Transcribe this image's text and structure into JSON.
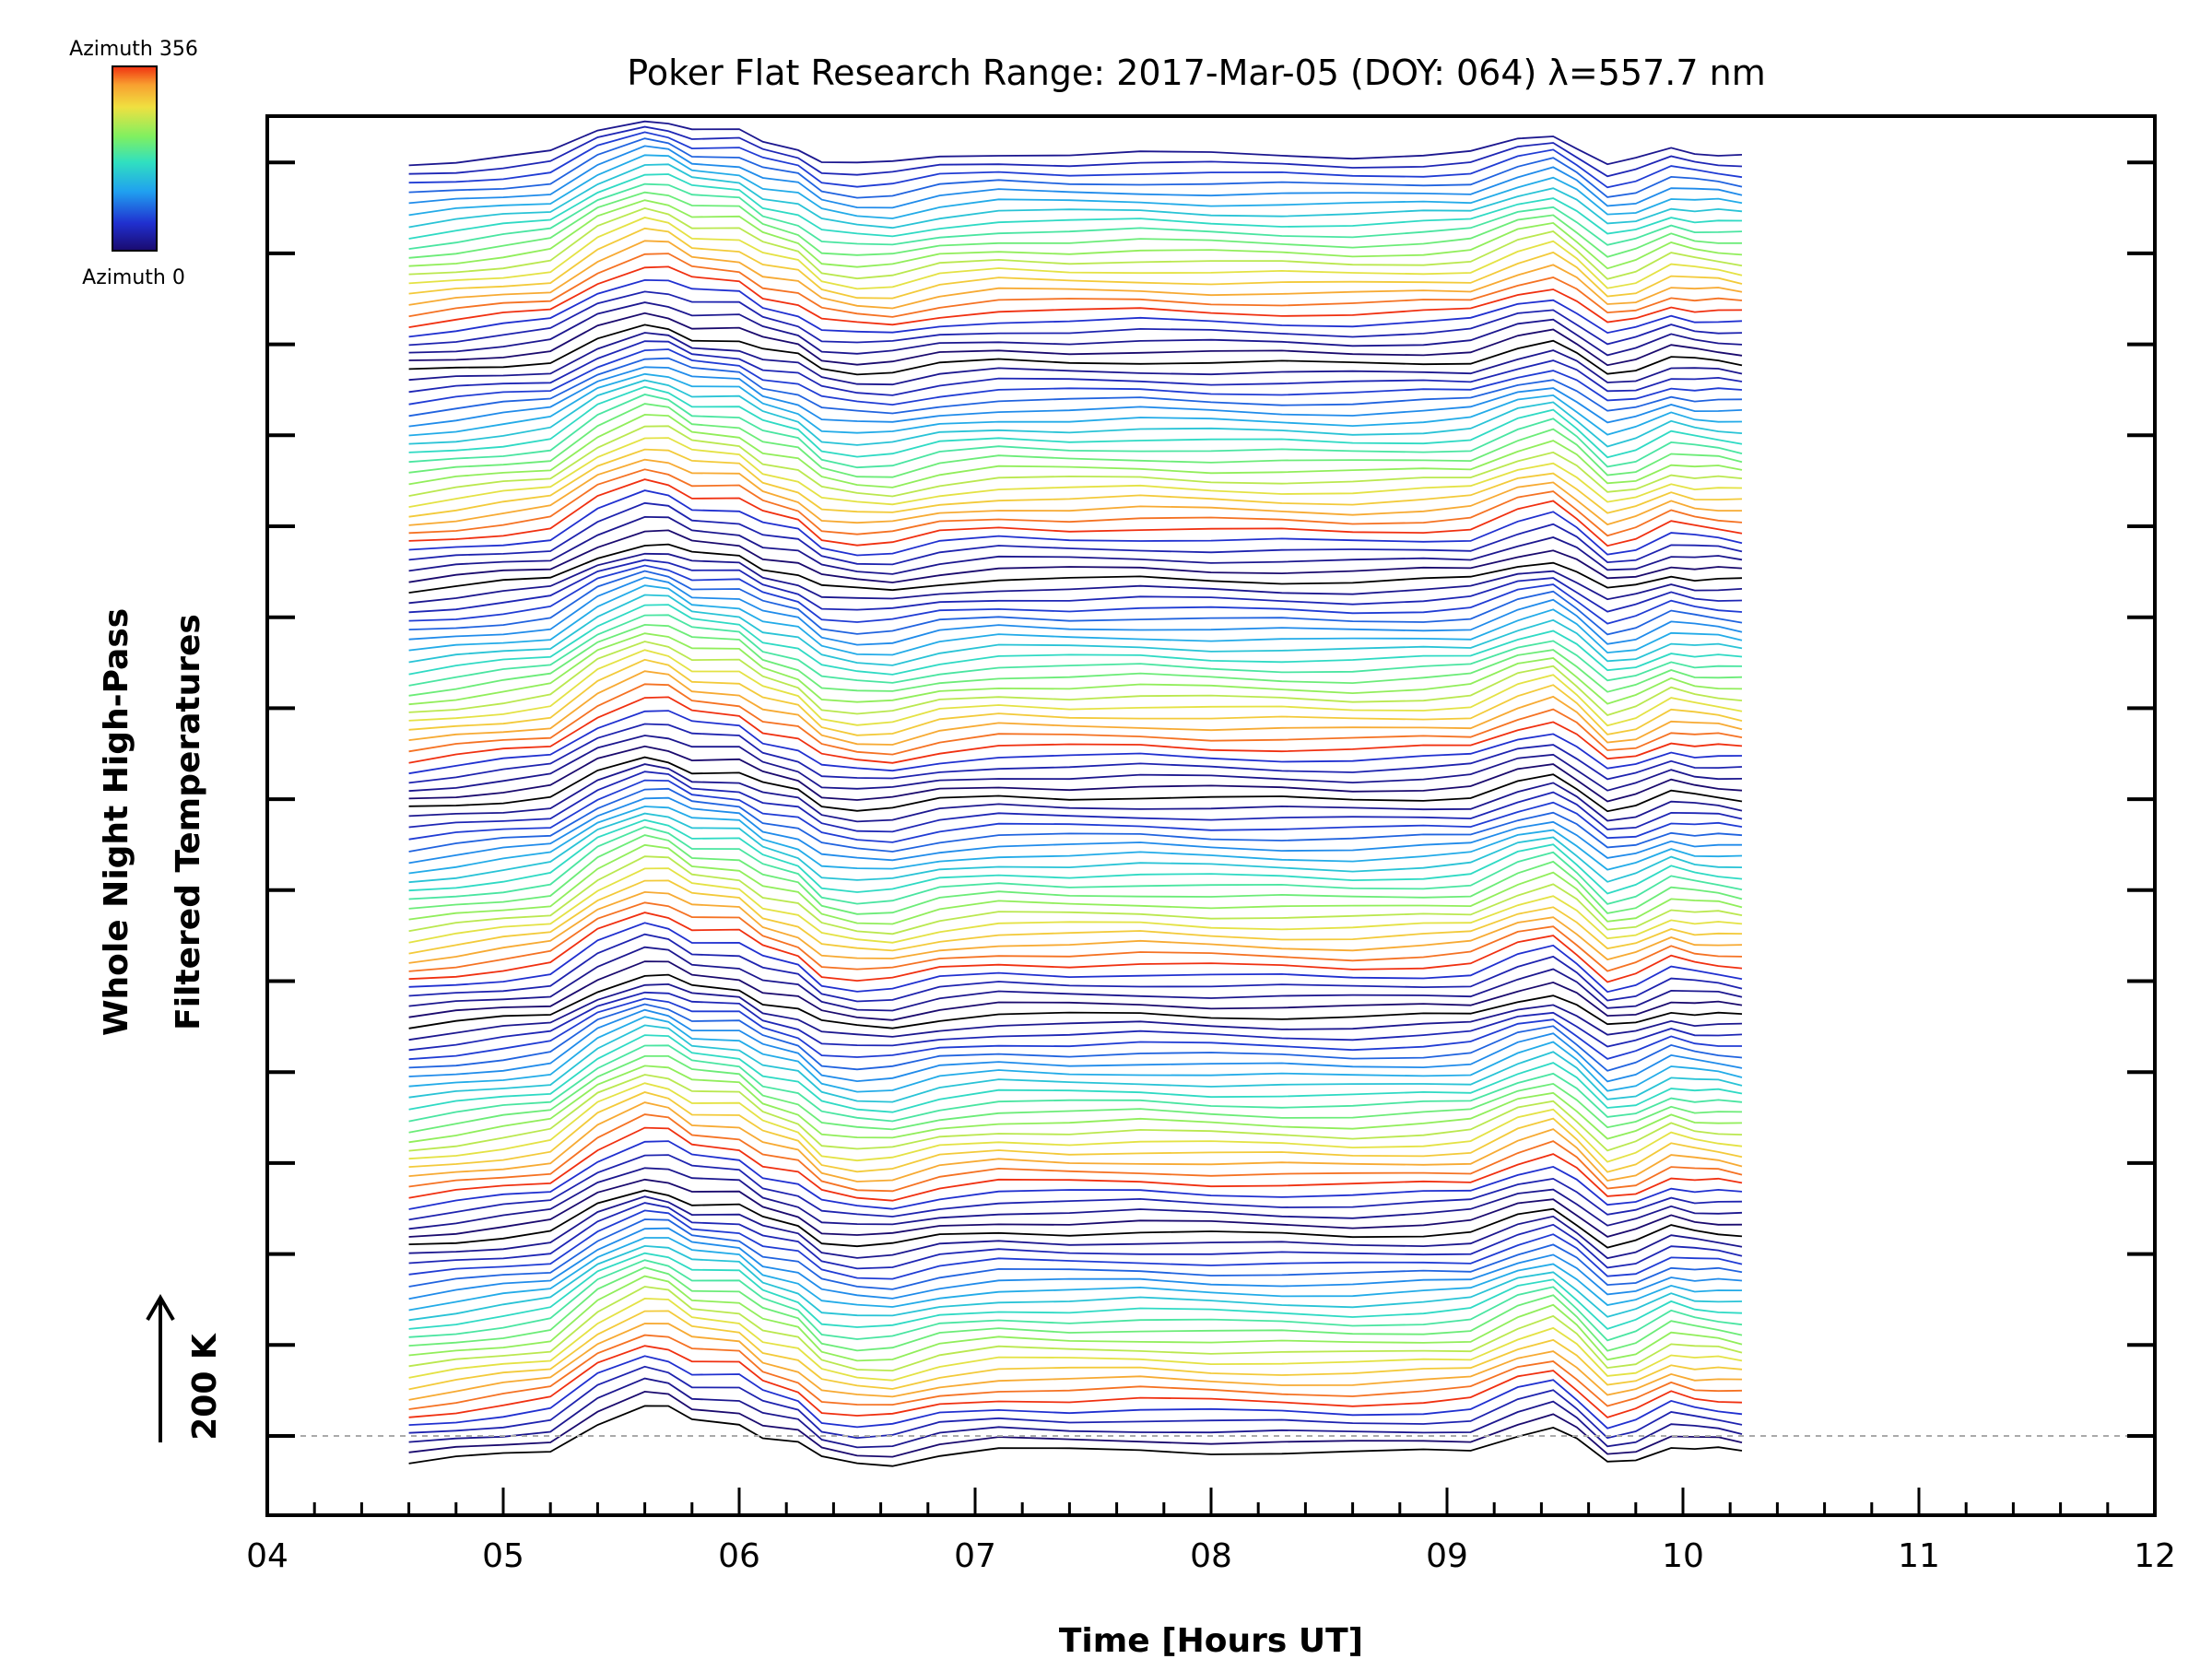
{
  "chart_data": {
    "type": "line",
    "title": "Poker Flat Research Range: 2017-Mar-05 (DOY: 064) λ=557.7 nm",
    "xlabel": "Time [Hours UT]",
    "ylabel_line1": "Whole Night High-Pass",
    "ylabel_line2": "Filtered Temperatures",
    "xlim": [
      4,
      12
    ],
    "x_tick_labels": [
      "04",
      "05",
      "06",
      "07",
      "08",
      "09",
      "10",
      "11",
      "12"
    ],
    "scale_bar_label": "200 K",
    "colorbar": {
      "top_label": "Azimuth 356",
      "bottom_label": "Azimuth 0",
      "min": 0,
      "max": 356
    },
    "stacked_series_count": 132,
    "series_groups": 6,
    "series_per_group": 22,
    "x": [
      4.6,
      4.8,
      5.0,
      5.2,
      5.4,
      5.6,
      5.7,
      5.8,
      6.0,
      6.1,
      6.25,
      6.35,
      6.5,
      6.65,
      6.85,
      7.1,
      7.4,
      7.7,
      8.0,
      8.3,
      8.6,
      8.9,
      9.1,
      9.3,
      9.45,
      9.55,
      9.68,
      9.8,
      9.95,
      10.05,
      10.15,
      10.25
    ],
    "template_profile": [
      -20,
      -10,
      0,
      10,
      70,
      105,
      100,
      75,
      70,
      40,
      25,
      -10,
      -20,
      -20,
      0,
      10,
      8,
      10,
      6,
      4,
      2,
      6,
      10,
      45,
      60,
      30,
      -20,
      -10,
      20,
      12,
      10,
      5
    ]
  }
}
